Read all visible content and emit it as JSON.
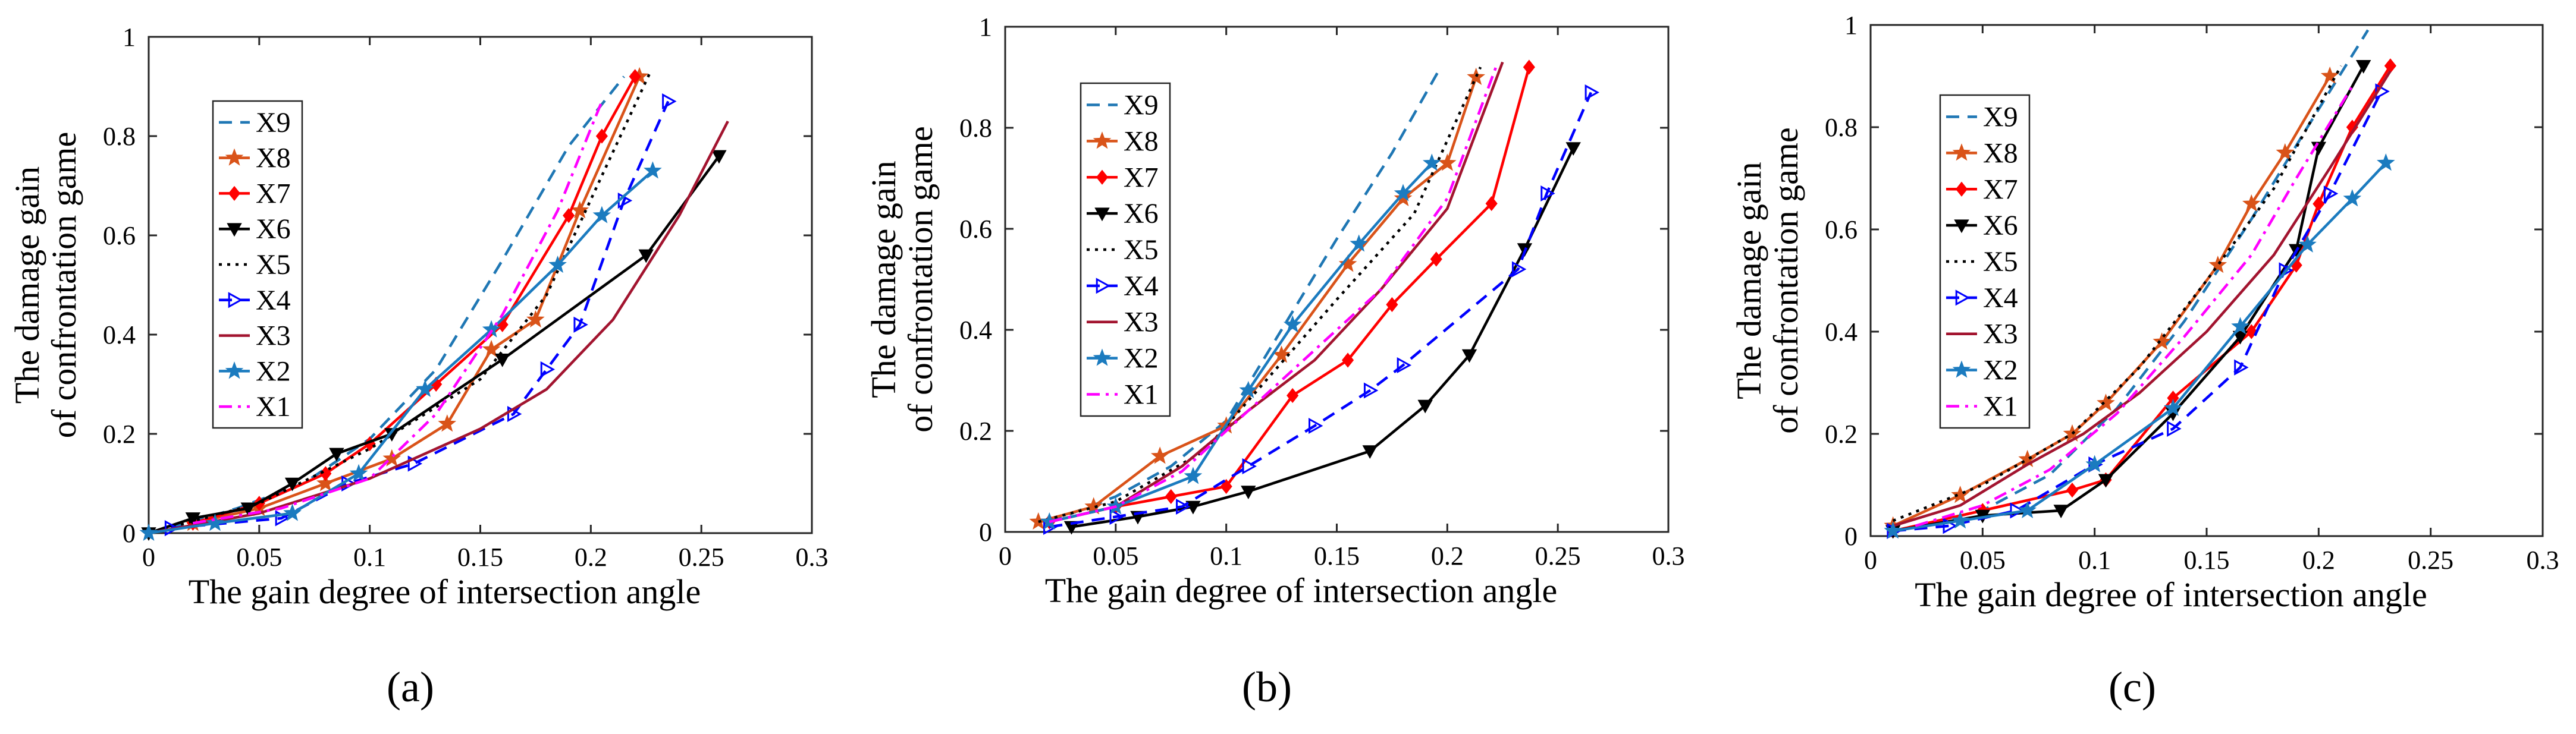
{
  "chart_data": [
    {
      "panel": "(a)",
      "type": "line",
      "xlabel": "The gain degree of intersection angle",
      "ylabel_lines": [
        "The damage gain",
        "of confrontation game"
      ],
      "xlim": [
        0,
        0.3
      ],
      "ylim": [
        0,
        1
      ],
      "xticks": [
        0,
        0.05,
        0.1,
        0.15,
        0.2,
        0.25,
        0.3
      ],
      "xtick_labels": [
        "0",
        "0.05",
        "0.1",
        "0.15",
        "0.2",
        "0.25",
        "0.3"
      ],
      "yticks": [
        0,
        0.2,
        0.4,
        0.6,
        0.8,
        1
      ],
      "ytick_labels": [
        "0",
        "0.2",
        "0.4",
        "0.6",
        "0.8",
        "1"
      ],
      "legend_position": "upper-left",
      "series": [
        {
          "name": "X9",
          "color": "#1f77b4",
          "dash": "dashed",
          "marker": "none",
          "x": [
            0.01,
            0.04,
            0.07,
            0.1,
            0.13,
            0.16,
            0.19,
            0.215
          ],
          "y": [
            0.01,
            0.05,
            0.1,
            0.19,
            0.33,
            0.55,
            0.78,
            0.92
          ]
        },
        {
          "name": "X8",
          "color": "#d95319",
          "dash": "solid",
          "marker": "star",
          "x": [
            0.02,
            0.05,
            0.08,
            0.11,
            0.135,
            0.155,
            0.175,
            0.195,
            0.222
          ],
          "y": [
            0.02,
            0.05,
            0.1,
            0.15,
            0.22,
            0.37,
            0.43,
            0.65,
            0.92
          ]
        },
        {
          "name": "X7",
          "color": "#ff0000",
          "dash": "solid",
          "marker": "diamond",
          "x": [
            0.02,
            0.05,
            0.08,
            0.1,
            0.13,
            0.16,
            0.19,
            0.205,
            0.22
          ],
          "y": [
            0.02,
            0.06,
            0.12,
            0.18,
            0.3,
            0.42,
            0.64,
            0.8,
            0.92
          ]
        },
        {
          "name": "X6",
          "color": "#000000",
          "dash": "solid",
          "marker": "triangle-down",
          "x": [
            0.0,
            0.02,
            0.045,
            0.065,
            0.085,
            0.11,
            0.16,
            0.225,
            0.258
          ],
          "y": [
            0.0,
            0.03,
            0.05,
            0.1,
            0.16,
            0.2,
            0.35,
            0.56,
            0.76
          ]
        },
        {
          "name": "X5",
          "color": "#000000",
          "dash": "dotted",
          "marker": "none",
          "x": [
            0.0,
            0.05,
            0.1,
            0.15,
            0.18,
            0.205,
            0.227
          ],
          "y": [
            0.0,
            0.06,
            0.17,
            0.31,
            0.48,
            0.72,
            0.93
          ]
        },
        {
          "name": "X4",
          "color": "#0000ff",
          "dash": "dashed",
          "marker": "triangle-right",
          "x": [
            0.01,
            0.06,
            0.09,
            0.12,
            0.165,
            0.18,
            0.195,
            0.215,
            0.235
          ],
          "y": [
            0.01,
            0.03,
            0.1,
            0.14,
            0.24,
            0.33,
            0.42,
            0.67,
            0.87
          ]
        },
        {
          "name": "X3",
          "color": "#a2142f",
          "dash": "solid",
          "marker": "none",
          "x": [
            0.0,
            0.05,
            0.1,
            0.15,
            0.18,
            0.21,
            0.24,
            0.262
          ],
          "y": [
            0.0,
            0.04,
            0.11,
            0.21,
            0.29,
            0.43,
            0.64,
            0.83
          ]
        },
        {
          "name": "X2",
          "color": "#1b7bbf",
          "dash": "solid",
          "marker": "star",
          "x": [
            0.0,
            0.03,
            0.065,
            0.095,
            0.125,
            0.155,
            0.185,
            0.205,
            0.228
          ],
          "y": [
            0.0,
            0.02,
            0.04,
            0.12,
            0.29,
            0.41,
            0.54,
            0.64,
            0.73
          ]
        },
        {
          "name": "X1",
          "color": "#ff00ff",
          "dash": "dashdot",
          "marker": "none",
          "x": [
            0.02,
            0.06,
            0.1,
            0.13,
            0.16,
            0.185,
            0.205
          ],
          "y": [
            0.02,
            0.05,
            0.11,
            0.24,
            0.44,
            0.65,
            0.87
          ]
        }
      ]
    },
    {
      "panel": "(b)",
      "type": "line",
      "xlabel": "The gain degree of intersection angle",
      "ylabel_lines": [
        "The damage gain",
        "of confrontation game"
      ],
      "xlim": [
        0,
        0.3
      ],
      "ylim": [
        0,
        1
      ],
      "xticks": [
        0,
        0.05,
        0.1,
        0.15,
        0.2,
        0.25,
        0.3
      ],
      "xtick_labels": [
        "0",
        "0.05",
        "0.1",
        "0.15",
        "0.2",
        "0.25",
        "0.3"
      ],
      "yticks": [
        0,
        0.2,
        0.4,
        0.6,
        0.8,
        1
      ],
      "ytick_labels": [
        "0",
        "0.2",
        "0.4",
        "0.6",
        "0.8",
        "1"
      ],
      "legend_position": "upper-left",
      "series": [
        {
          "name": "X9",
          "color": "#1f77b4",
          "dash": "dashed",
          "marker": "none",
          "x": [
            0.02,
            0.05,
            0.075,
            0.1,
            0.125,
            0.15,
            0.175,
            0.197
          ],
          "y": [
            0.02,
            0.07,
            0.13,
            0.22,
            0.4,
            0.58,
            0.75,
            0.92
          ]
        },
        {
          "name": "X8",
          "color": "#d95319",
          "dash": "solid",
          "marker": "star",
          "x": [
            0.015,
            0.04,
            0.07,
            0.1,
            0.125,
            0.155,
            0.18,
            0.2,
            0.213
          ],
          "y": [
            0.02,
            0.05,
            0.15,
            0.21,
            0.35,
            0.53,
            0.66,
            0.73,
            0.9
          ]
        },
        {
          "name": "X7",
          "color": "#ff0000",
          "dash": "solid",
          "marker": "diamond",
          "x": [
            0.02,
            0.05,
            0.075,
            0.1,
            0.13,
            0.155,
            0.175,
            0.195,
            0.22,
            0.237
          ],
          "y": [
            0.02,
            0.05,
            0.07,
            0.09,
            0.27,
            0.34,
            0.45,
            0.54,
            0.65,
            0.92
          ]
        },
        {
          "name": "X6",
          "color": "#000000",
          "dash": "solid",
          "marker": "triangle-down",
          "x": [
            0.03,
            0.06,
            0.085,
            0.11,
            0.165,
            0.19,
            0.21,
            0.235,
            0.257
          ],
          "y": [
            0.01,
            0.03,
            0.05,
            0.08,
            0.16,
            0.25,
            0.35,
            0.56,
            0.76
          ]
        },
        {
          "name": "X5",
          "color": "#000000",
          "dash": "dotted",
          "marker": "none",
          "x": [
            0.015,
            0.05,
            0.09,
            0.12,
            0.15,
            0.185,
            0.215
          ],
          "y": [
            0.02,
            0.06,
            0.16,
            0.31,
            0.46,
            0.63,
            0.92
          ]
        },
        {
          "name": "X4",
          "color": "#0000ff",
          "dash": "dashed",
          "marker": "triangle-right",
          "x": [
            0.02,
            0.05,
            0.08,
            0.11,
            0.14,
            0.165,
            0.18,
            0.232,
            0.245,
            0.265
          ],
          "y": [
            0.01,
            0.03,
            0.05,
            0.13,
            0.21,
            0.28,
            0.33,
            0.52,
            0.67,
            0.87
          ]
        },
        {
          "name": "X3",
          "color": "#a2142f",
          "dash": "solid",
          "marker": "none",
          "x": [
            0.02,
            0.05,
            0.08,
            0.11,
            0.14,
            0.17,
            0.2,
            0.225
          ],
          "y": [
            0.02,
            0.05,
            0.13,
            0.24,
            0.34,
            0.48,
            0.64,
            0.93
          ]
        },
        {
          "name": "X2",
          "color": "#1b7bbf",
          "dash": "solid",
          "marker": "star",
          "x": [
            0.02,
            0.05,
            0.085,
            0.11,
            0.13,
            0.16,
            0.18,
            0.193
          ],
          "y": [
            0.02,
            0.05,
            0.11,
            0.28,
            0.41,
            0.57,
            0.67,
            0.73
          ]
        },
        {
          "name": "X1",
          "color": "#ff00ff",
          "dash": "dashdot",
          "marker": "none",
          "x": [
            0.02,
            0.05,
            0.08,
            0.11,
            0.14,
            0.17,
            0.2,
            0.222
          ],
          "y": [
            0.02,
            0.05,
            0.12,
            0.24,
            0.36,
            0.48,
            0.66,
            0.92
          ]
        }
      ]
    },
    {
      "panel": "(c)",
      "type": "line",
      "xlabel": "The gain degree of intersection angle",
      "ylabel_lines": [
        "The damage gain",
        "of confrontation game"
      ],
      "xlim": [
        0,
        0.3
      ],
      "ylim": [
        0,
        1
      ],
      "xticks": [
        0,
        0.05,
        0.1,
        0.15,
        0.2,
        0.25,
        0.3
      ],
      "xtick_labels": [
        "0",
        "0.05",
        "0.1",
        "0.15",
        "0.2",
        "0.25",
        "0.3"
      ],
      "yticks": [
        0,
        0.2,
        0.4,
        0.6,
        0.8,
        1
      ],
      "ytick_labels": [
        "0",
        "0.2",
        "0.4",
        "0.6",
        "0.8",
        "1"
      ],
      "legend_position": "upper-left",
      "series": [
        {
          "name": "X9",
          "color": "#1f77b4",
          "dash": "dashed",
          "marker": "none",
          "x": [
            0.01,
            0.05,
            0.08,
            0.11,
            0.14,
            0.17,
            0.195,
            0.222
          ],
          "y": [
            0.01,
            0.05,
            0.12,
            0.25,
            0.42,
            0.62,
            0.8,
            0.99
          ]
        },
        {
          "name": "X8",
          "color": "#d95319",
          "dash": "solid",
          "marker": "star",
          "x": [
            0.01,
            0.04,
            0.07,
            0.09,
            0.105,
            0.13,
            0.155,
            0.17,
            0.185,
            0.205
          ],
          "y": [
            0.02,
            0.08,
            0.15,
            0.2,
            0.26,
            0.38,
            0.53,
            0.65,
            0.75,
            0.9
          ]
        },
        {
          "name": "X7",
          "color": "#ff0000",
          "dash": "solid",
          "marker": "diamond",
          "x": [
            0.01,
            0.05,
            0.09,
            0.105,
            0.135,
            0.17,
            0.19,
            0.2,
            0.215,
            0.232
          ],
          "y": [
            0.01,
            0.05,
            0.09,
            0.11,
            0.27,
            0.4,
            0.53,
            0.65,
            0.8,
            0.92
          ]
        },
        {
          "name": "X6",
          "color": "#000000",
          "dash": "solid",
          "marker": "triangle-down",
          "x": [
            0.01,
            0.05,
            0.085,
            0.105,
            0.135,
            0.165,
            0.19,
            0.2,
            0.22
          ],
          "y": [
            0.01,
            0.04,
            0.05,
            0.11,
            0.24,
            0.39,
            0.56,
            0.76,
            0.92
          ]
        },
        {
          "name": "X5",
          "color": "#000000",
          "dash": "dotted",
          "marker": "none",
          "x": [
            0.01,
            0.05,
            0.09,
            0.12,
            0.15,
            0.18,
            0.21
          ],
          "y": [
            0.03,
            0.1,
            0.2,
            0.33,
            0.5,
            0.68,
            0.92
          ]
        },
        {
          "name": "X4",
          "color": "#0000ff",
          "dash": "dashed",
          "marker": "triangle-right",
          "x": [
            0.01,
            0.035,
            0.065,
            0.1,
            0.135,
            0.165,
            0.185,
            0.205,
            0.228
          ],
          "y": [
            0.01,
            0.02,
            0.05,
            0.14,
            0.21,
            0.33,
            0.52,
            0.67,
            0.87
          ]
        },
        {
          "name": "X3",
          "color": "#a2142f",
          "dash": "solid",
          "marker": "none",
          "x": [
            0.01,
            0.04,
            0.07,
            0.095,
            0.12,
            0.15,
            0.18,
            0.205,
            0.232
          ],
          "y": [
            0.02,
            0.06,
            0.14,
            0.2,
            0.28,
            0.4,
            0.55,
            0.72,
            0.91
          ]
        },
        {
          "name": "X2",
          "color": "#1b7bbf",
          "dash": "solid",
          "marker": "star",
          "x": [
            0.01,
            0.04,
            0.07,
            0.1,
            0.135,
            0.165,
            0.195,
            0.215,
            0.23
          ],
          "y": [
            0.01,
            0.03,
            0.05,
            0.14,
            0.25,
            0.41,
            0.57,
            0.66,
            0.73
          ]
        },
        {
          "name": "X1",
          "color": "#ff00ff",
          "dash": "dashdot",
          "marker": "none",
          "x": [
            0.02,
            0.05,
            0.08,
            0.11,
            0.14,
            0.17,
            0.19,
            0.215
          ],
          "y": [
            0.02,
            0.06,
            0.13,
            0.24,
            0.39,
            0.55,
            0.7,
            0.88
          ]
        }
      ]
    }
  ]
}
